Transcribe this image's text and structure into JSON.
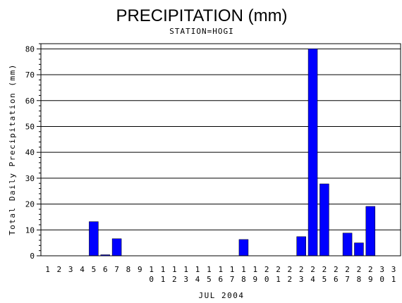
{
  "chart_data": {
    "type": "bar",
    "title": "PRECIPITATION (mm)",
    "subtitle": "STATION=HOGI",
    "xlabel": "JUL 2004",
    "ylabel": "Total Daily Precipitation (mm)",
    "ylim": [
      0,
      82
    ],
    "yticks": [
      0,
      10,
      20,
      30,
      40,
      50,
      60,
      70,
      80
    ],
    "grid": true,
    "categories": [
      "1",
      "2",
      "3",
      "4",
      "5",
      "6",
      "7",
      "8",
      "9",
      "10",
      "11",
      "12",
      "13",
      "14",
      "15",
      "16",
      "17",
      "18",
      "19",
      "20",
      "21",
      "22",
      "23",
      "24",
      "25",
      "26",
      "27",
      "28",
      "29",
      "30",
      "31"
    ],
    "values": [
      0,
      0,
      0,
      0,
      13.2,
      0.4,
      6.6,
      0,
      0,
      0,
      0,
      0,
      0,
      0,
      0,
      0,
      0,
      6.3,
      0,
      0,
      0,
      0,
      7.4,
      80,
      27.8,
      0,
      8.8,
      5,
      19.1,
      0,
      0
    ],
    "bar_color": "#0000ff"
  }
}
